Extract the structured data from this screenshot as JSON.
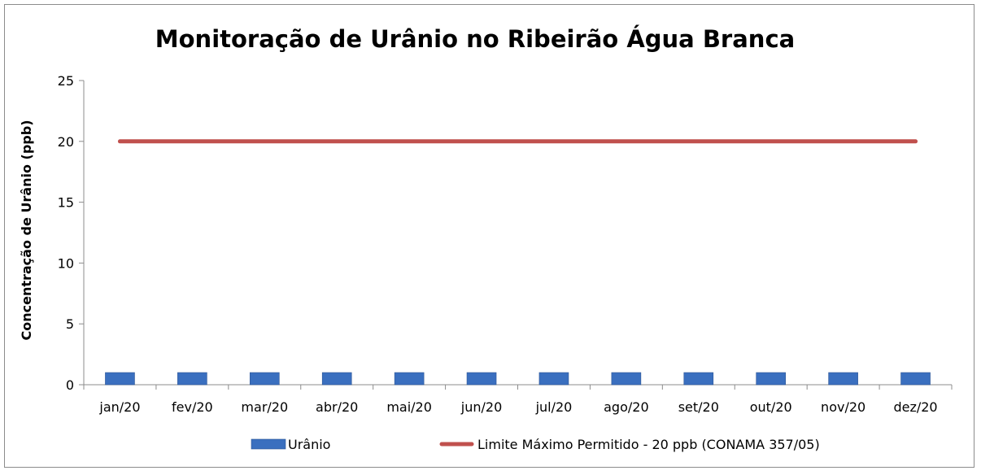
{
  "chart_data": {
    "type": "bar",
    "title": "Monitoração de Urânio no Ribeirão Água Branca",
    "xlabel": "",
    "ylabel": "Concentração de Urânio (ppb)",
    "ylim": [
      0,
      25
    ],
    "yticks": [
      0,
      5,
      10,
      15,
      20,
      25
    ],
    "grid": false,
    "legend_position": "bottom",
    "categories": [
      "jan/20",
      "fev/20",
      "mar/20",
      "abr/20",
      "mai/20",
      "jun/20",
      "jul/20",
      "ago/20",
      "set/20",
      "out/20",
      "nov/20",
      "dez/20"
    ],
    "series": [
      {
        "name": "Urânio",
        "type": "bar",
        "color": "#3a6fbf",
        "values": [
          1,
          1,
          1,
          1,
          1,
          1,
          1,
          1,
          1,
          1,
          1,
          1
        ]
      },
      {
        "name": "Limite Máximo Permitido - 20 ppb (CONAMA 357/05)",
        "type": "line",
        "color": "#c0504d",
        "values": [
          20,
          20,
          20,
          20,
          20,
          20,
          20,
          20,
          20,
          20,
          20,
          20
        ]
      }
    ]
  }
}
